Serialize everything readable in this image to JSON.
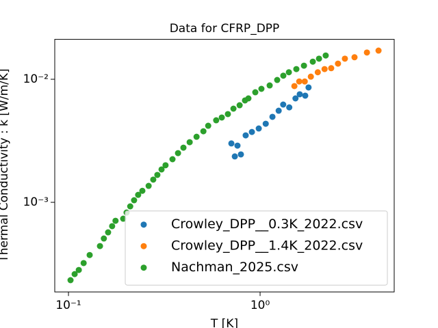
{
  "chart_data": {
    "type": "scatter",
    "title": "Data for CFRP_DPP",
    "x_label": "T [K]",
    "y_label": "Thermal Conductivity : k [W/m/K]",
    "xscale": "log",
    "yscale": "log",
    "xlim": [
      0.0848,
      5.01
    ],
    "ylim": [
      0.000187,
      0.0211
    ],
    "xticks": [
      {
        "value": 0.1,
        "label": "10⁻¹"
      },
      {
        "value": 1,
        "label": "10⁰"
      }
    ],
    "yticks": [
      {
        "value": 0.001,
        "label": "10⁻³"
      },
      {
        "value": 0.01,
        "label": "10⁻²"
      }
    ],
    "legend": "lower right",
    "series": [
      {
        "name": "Crowley_DPP__0.3K_2022.csv",
        "color": "#1f77b4",
        "x": [
          0.708,
          0.738,
          0.762,
          0.794,
          0.841,
          0.906,
          0.984,
          1.07,
          1.16,
          1.25,
          1.32,
          1.42,
          1.53,
          1.61,
          1.72,
          1.79
        ],
        "values": [
          0.00301,
          0.00236,
          0.00289,
          0.00245,
          0.0035,
          0.00373,
          0.00398,
          0.00435,
          0.00495,
          0.00555,
          0.00623,
          0.00591,
          0.00699,
          0.00755,
          0.00736,
          0.00858
        ]
      },
      {
        "name": "Crowley_DPP__1.4K_2022.csv",
        "color": "#ff7f0e",
        "x": [
          1.51,
          1.6,
          1.71,
          1.84,
          2.0,
          2.17,
          2.35,
          2.55,
          2.77,
          3.11,
          3.61,
          4.15
        ],
        "values": [
          0.0088,
          0.0096,
          0.0096,
          0.0105,
          0.0114,
          0.0121,
          0.0123,
          0.0134,
          0.0147,
          0.0151,
          0.0165,
          0.0171
        ]
      },
      {
        "name": "Nachman_2025.csv",
        "color": "#2ca02c",
        "x": [
          0.1025,
          0.1077,
          0.1132,
          0.12,
          0.129,
          0.146,
          0.153,
          0.161,
          0.169,
          0.176,
          0.193,
          0.201,
          0.21,
          0.22,
          0.231,
          0.243,
          0.262,
          0.277,
          0.291,
          0.306,
          0.321,
          0.349,
          0.373,
          0.398,
          0.429,
          0.466,
          0.506,
          0.536,
          0.59,
          0.631,
          0.679,
          0.726,
          0.782,
          0.834,
          0.869,
          0.944,
          1.016,
          1.122,
          1.228,
          1.322,
          1.413,
          1.546,
          1.694,
          1.884,
          2.03,
          2.2
        ],
        "values": [
          0.000233,
          0.000261,
          0.000282,
          0.000321,
          0.000373,
          0.000441,
          0.000508,
          0.00057,
          0.00064,
          0.000708,
          0.000736,
          0.000826,
          0.000927,
          0.00104,
          0.00115,
          0.00124,
          0.00136,
          0.00153,
          0.00167,
          0.00185,
          0.002,
          0.00224,
          0.00251,
          0.00278,
          0.00308,
          0.00341,
          0.00378,
          0.00419,
          0.00464,
          0.00489,
          0.00521,
          0.00577,
          0.00615,
          0.00673,
          0.00699,
          0.00784,
          0.00836,
          0.00891,
          0.00987,
          0.0107,
          0.0114,
          0.0121,
          0.0129,
          0.0139,
          0.0147,
          0.0156
        ]
      }
    ]
  }
}
